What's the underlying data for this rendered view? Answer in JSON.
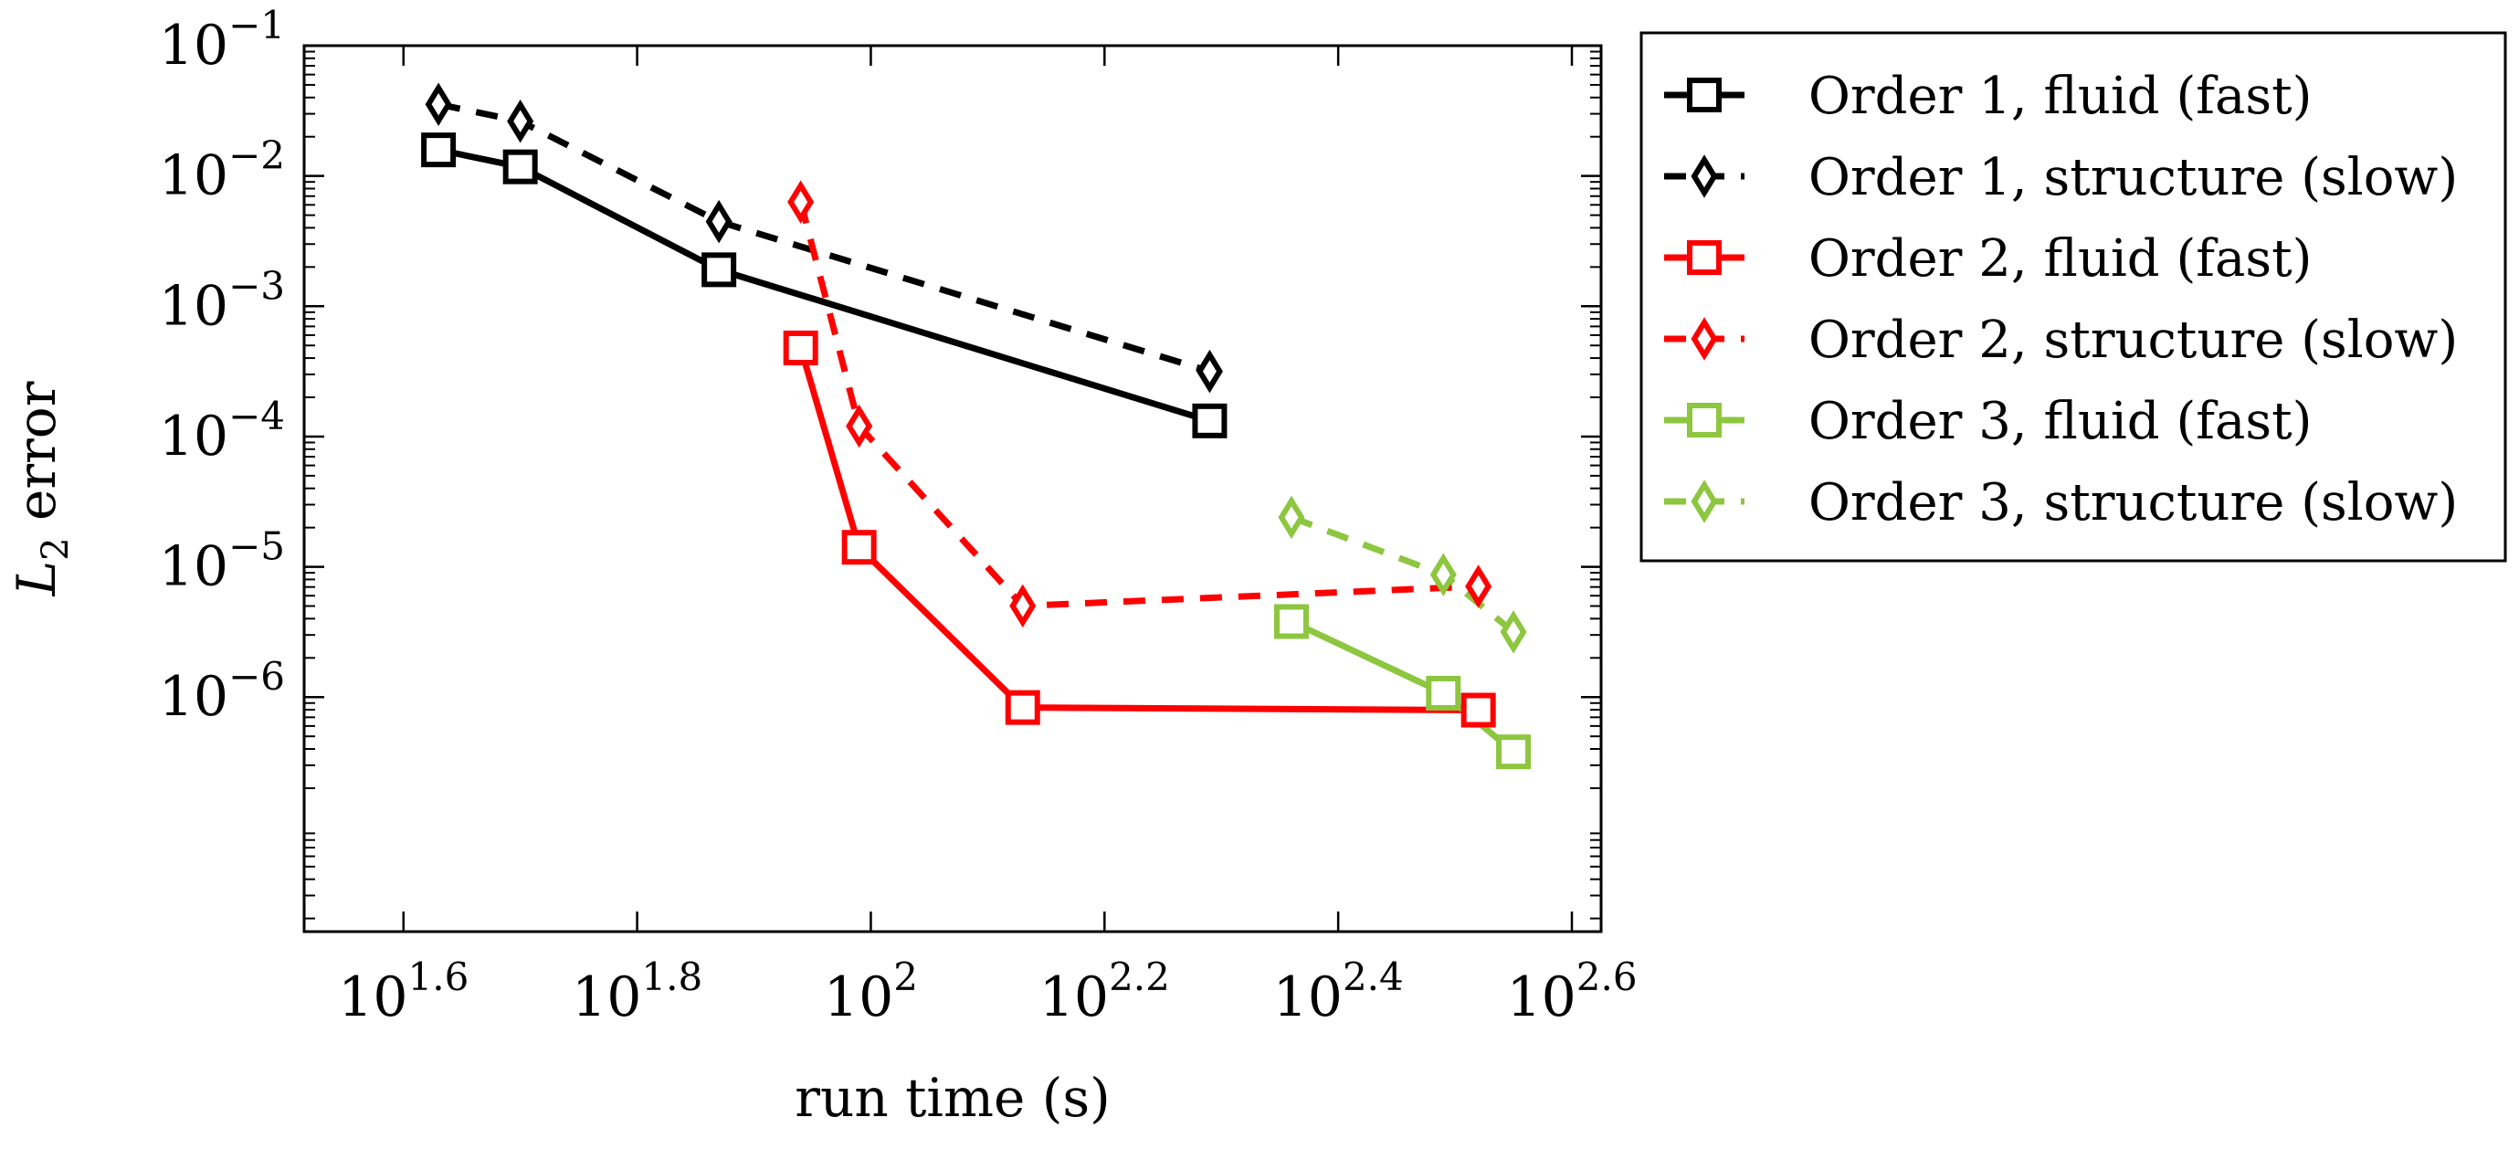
{
  "chart_data": {
    "type": "line",
    "x_scale": "log10",
    "y_scale": "log10",
    "xlabel": "run time (s)",
    "ylabel": {
      "base": "L",
      "subscript": "2",
      "rest": " error"
    },
    "xlim_log10": [
      1.515,
      2.625
    ],
    "ylim_log10": [
      -7.8,
      -1.0
    ],
    "x_ticks": [
      {
        "base": "10",
        "exp": "1.6",
        "value_log10": 1.6
      },
      {
        "base": "10",
        "exp": "1.8",
        "value_log10": 1.8
      },
      {
        "base": "10",
        "exp": "",
        "text": "10",
        "exp2": "2",
        "value_log10": 2.0
      },
      {
        "base": "10",
        "exp": "2.2",
        "value_log10": 2.2
      },
      {
        "base": "10",
        "exp": "2.4",
        "value_log10": 2.4
      },
      {
        "base": "10",
        "exp": "2.6",
        "value_log10": 2.6
      }
    ],
    "y_ticks": [
      {
        "base": "10",
        "exp": "−1",
        "value_log10": -1
      },
      {
        "base": "10",
        "exp": "−2",
        "value_log10": -2
      },
      {
        "base": "10",
        "exp": "−3",
        "value_log10": -3
      },
      {
        "base": "10",
        "exp": "−4",
        "value_log10": -4
      },
      {
        "base": "10",
        "exp": "−5",
        "value_log10": -5
      },
      {
        "base": "10",
        "exp": "−6",
        "value_log10": -6
      }
    ],
    "series": [
      {
        "name": "Order 1, fluid (fast)",
        "color": "#000000",
        "dashed": false,
        "marker": "square",
        "x_log10": [
          1.63,
          1.7,
          1.87,
          2.29
        ],
        "y_log10": [
          -1.8,
          -1.93,
          -2.72,
          -3.88
        ]
      },
      {
        "name": "Order 1, structure (slow)",
        "color": "#000000",
        "dashed": true,
        "marker": "diamond",
        "x_log10": [
          1.63,
          1.7,
          1.87,
          2.29
        ],
        "y_log10": [
          -1.45,
          -1.58,
          -2.35,
          -3.5
        ]
      },
      {
        "name": "Order 2, fluid (fast)",
        "color": "#ff0000",
        "dashed": false,
        "marker": "square",
        "x_log10": [
          1.94,
          1.99,
          2.13,
          2.52
        ],
        "y_log10": [
          -3.32,
          -4.85,
          -6.08,
          -6.1
        ]
      },
      {
        "name": "Order 2, structure (slow)",
        "color": "#ff0000",
        "dashed": true,
        "marker": "diamond",
        "x_log10": [
          1.94,
          1.99,
          2.13,
          2.52
        ],
        "y_log10": [
          -2.2,
          -3.92,
          -5.3,
          -5.15
        ]
      },
      {
        "name": "Order 3, fluid (fast)",
        "color": "#8dc63f",
        "dashed": false,
        "marker": "square",
        "x_log10": [
          2.36,
          2.49,
          2.55
        ],
        "y_log10": [
          -5.42,
          -5.97,
          -6.42
        ]
      },
      {
        "name": "Order 3, structure (slow)",
        "color": "#8dc63f",
        "dashed": true,
        "marker": "diamond",
        "x_log10": [
          2.36,
          2.49,
          2.55
        ],
        "y_log10": [
          -4.62,
          -5.06,
          -5.5
        ]
      }
    ],
    "legend_position": "outside-right"
  }
}
